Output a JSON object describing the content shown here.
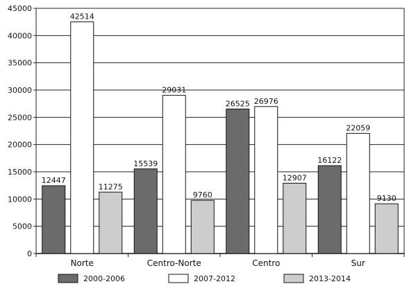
{
  "chart_data": {
    "type": "bar",
    "categories": [
      "Norte",
      "Centro-Norte",
      "Centro",
      "Sur"
    ],
    "series": [
      {
        "name": "2000-2006",
        "values": [
          12447,
          15539,
          26525,
          16122
        ],
        "color": "#6b6b6b",
        "labels": [
          "12447",
          "15539",
          "26525",
          "16122"
        ]
      },
      {
        "name": "2007-2012",
        "values": [
          42514,
          29031,
          26976,
          22059
        ],
        "color": "#ffffff",
        "labels": [
          "42514",
          "29031",
          "26976",
          "22059"
        ]
      },
      {
        "name": "2013-2014",
        "values": [
          11275,
          9760,
          12907,
          9130
        ],
        "color": "#cdcdcd",
        "labels": [
          "11275",
          "9760",
          "12907",
          "9130"
        ]
      }
    ],
    "ylim": [
      0,
      45000
    ],
    "yticks": [
      0,
      5000,
      10000,
      15000,
      20000,
      25000,
      30000,
      35000,
      40000,
      45000
    ],
    "ytick_labels": [
      "0",
      "5000",
      "10000",
      "15000",
      "20000",
      "25000",
      "30000",
      "35000",
      "40000",
      "45000"
    ],
    "grid": true,
    "legend_position": "bottom",
    "title": "",
    "xlabel": "",
    "ylabel": ""
  }
}
